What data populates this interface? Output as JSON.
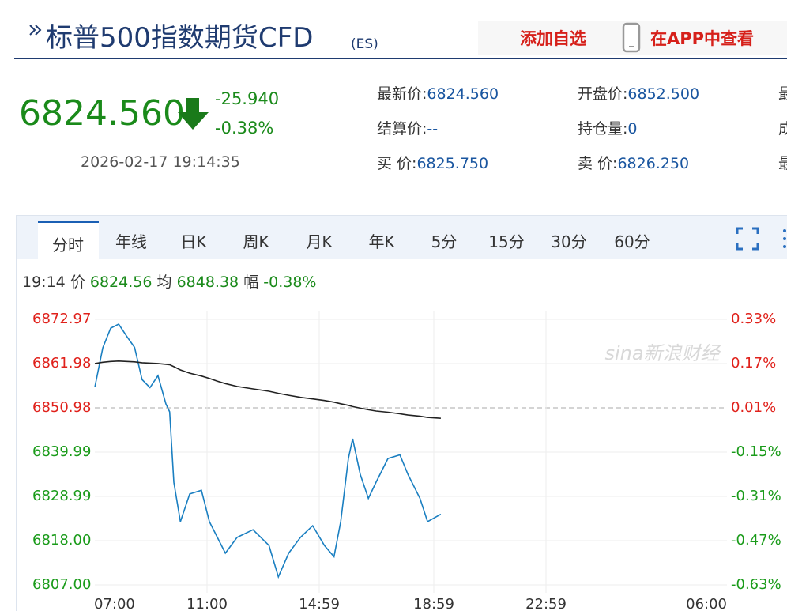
{
  "header": {
    "title": "标普500指数期货CFD",
    "code": "(ES)",
    "add_watch": "添加自选",
    "open_app": "在APP中查看"
  },
  "quote": {
    "price": "6824.560",
    "change": "-25.940",
    "change_pct": "-0.38%",
    "time": "2026-02-17 19:14:35"
  },
  "fields": [
    [
      {
        "label": "最新价:",
        "value": "6824.560"
      },
      {
        "label": "开盘价:",
        "value": "6852.500"
      },
      {
        "label": "最"
      }
    ],
    [
      {
        "label": "结算价:",
        "value": "--"
      },
      {
        "label": "持仓量:",
        "value": "0"
      },
      {
        "label": "成"
      }
    ],
    [
      {
        "label": "买 价:",
        "value": "6825.750"
      },
      {
        "label": "卖 价:",
        "value": "6826.250"
      },
      {
        "label": "最"
      }
    ]
  ],
  "tabs": [
    "分时",
    "年线",
    "日K",
    "周K",
    "月K",
    "年K",
    "5分",
    "15分",
    "30分",
    "60分"
  ],
  "active_tab": 0,
  "info": {
    "time": "19:14",
    "price_label": "价",
    "price": "6824.56",
    "avg_label": "均",
    "avg": "6848.38",
    "pct_label": "幅",
    "pct": "-0.38%"
  },
  "chart_data": {
    "type": "line",
    "watermark": "sina新浪财经",
    "x": [
      "07:00",
      "07:17",
      "07:34",
      "07:51",
      "08:08",
      "08:25",
      "08:41",
      "08:58",
      "09:15",
      "09:32",
      "09:40",
      "09:49",
      "10:03",
      "10:23",
      "10:48",
      "11:05",
      "11:22",
      "11:39",
      "12:04",
      "12:38",
      "13:12",
      "13:32",
      "13:54",
      "14:19",
      "14:45",
      "15:10",
      "15:30",
      "15:44",
      "16:00",
      "16:09",
      "16:25",
      "16:42",
      "16:58",
      "17:23",
      "17:48",
      "18:05",
      "18:30",
      "18:46",
      "19:14"
    ],
    "series": [
      {
        "color": "#1a7fc1",
        "values": [
          6856.1,
          6865.9,
          6870.8,
          6871.8,
          6868.8,
          6866.0,
          6858.0,
          6856.0,
          6859.0,
          6852.0,
          6850.0,
          6832.5,
          6822.7,
          6829.6,
          6830.5,
          6822.7,
          6818.8,
          6814.9,
          6818.8,
          6820.7,
          6816.8,
          6809.0,
          6814.9,
          6818.8,
          6821.7,
          6816.8,
          6814.0,
          6822.7,
          6838.4,
          6843.3,
          6834.4,
          6828.5,
          6832.5,
          6838.4,
          6839.3,
          6834.4,
          6828.5,
          6822.7,
          6824.56
        ]
      },
      {
        "color": "#222222",
        "values": [
          6862.0,
          6862.3,
          6862.5,
          6862.6,
          6862.5,
          6862.4,
          6862.2,
          6862.1,
          6862.0,
          6861.8,
          6861.7,
          6861.2,
          6860.4,
          6859.6,
          6858.9,
          6858.3,
          6857.6,
          6857.0,
          6856.3,
          6855.7,
          6855.1,
          6854.6,
          6854.1,
          6853.6,
          6853.2,
          6852.8,
          6852.4,
          6852.0,
          6851.6,
          6851.3,
          6850.9,
          6850.5,
          6850.2,
          6849.9,
          6849.5,
          6849.2,
          6848.9,
          6848.6,
          6848.38
        ]
      }
    ],
    "xticks": [
      "07:00",
      "11:00",
      "14:59",
      "18:59",
      "22:59",
      "06:00"
    ],
    "ylim": [
      6807,
      6872.97
    ],
    "yticks": [
      6872.97,
      6861.98,
      6850.98,
      6839.99,
      6828.99,
      {
        "value": 6818,
        "label": "6818.00"
      },
      {
        "value": 6807,
        "label": "6807.00"
      }
    ],
    "y2lim": [
      -0.63,
      0.33
    ],
    "y2ticks": [
      {
        "value": 0.33,
        "label": "0.33%"
      },
      {
        "value": 0.17,
        "label": "0.17%"
      },
      {
        "value": 0.01,
        "label": "0.01%"
      },
      {
        "value": -0.15,
        "label": "-0.15%"
      },
      {
        "value": -0.31,
        "label": "-0.31%"
      },
      {
        "value": -0.47,
        "label": "-0.47%"
      },
      {
        "value": -0.63,
        "label": "-0.63%"
      }
    ],
    "up_color": "#e0211b",
    "down_color": "#1a9b1a",
    "grid": true
  }
}
